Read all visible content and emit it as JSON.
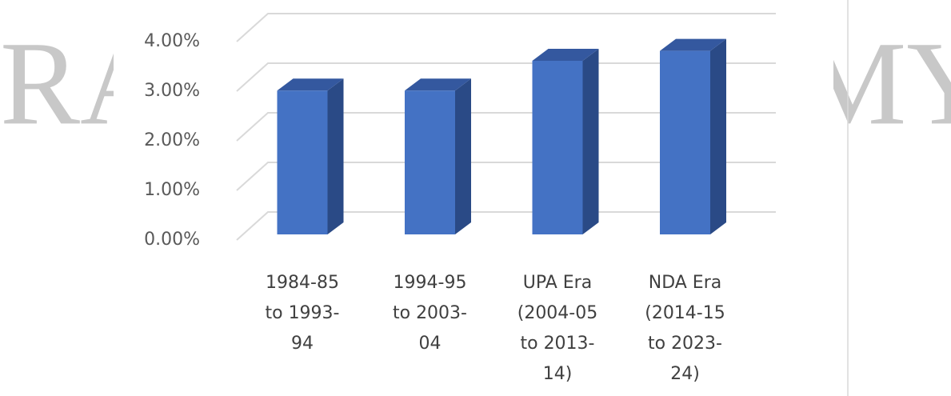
{
  "chart_data": {
    "type": "bar3d",
    "watermark_left": "RA",
    "watermark_right": "MY",
    "categories": [
      [
        "1984-85",
        "to 1993-",
        "94"
      ],
      [
        "1994-95",
        "to 2003-",
        "04"
      ],
      [
        "UPA Era",
        "(2004-05",
        "to 2013-",
        "14)"
      ],
      [
        "NDA Era",
        "(2014-15",
        "to 2023-",
        "24)"
      ]
    ],
    "values": [
      2.9,
      2.9,
      3.5,
      3.7
    ],
    "color": "#4472c4",
    "ylim": [
      0,
      4.5
    ],
    "yticks": [
      {
        "value": 0,
        "label": "0.00%"
      },
      {
        "value": 1,
        "label": "1.00%"
      },
      {
        "value": 2,
        "label": "2.00%"
      },
      {
        "value": 3,
        "label": "3.00%"
      },
      {
        "value": 4,
        "label": "4.00%"
      }
    ],
    "grid": true
  }
}
